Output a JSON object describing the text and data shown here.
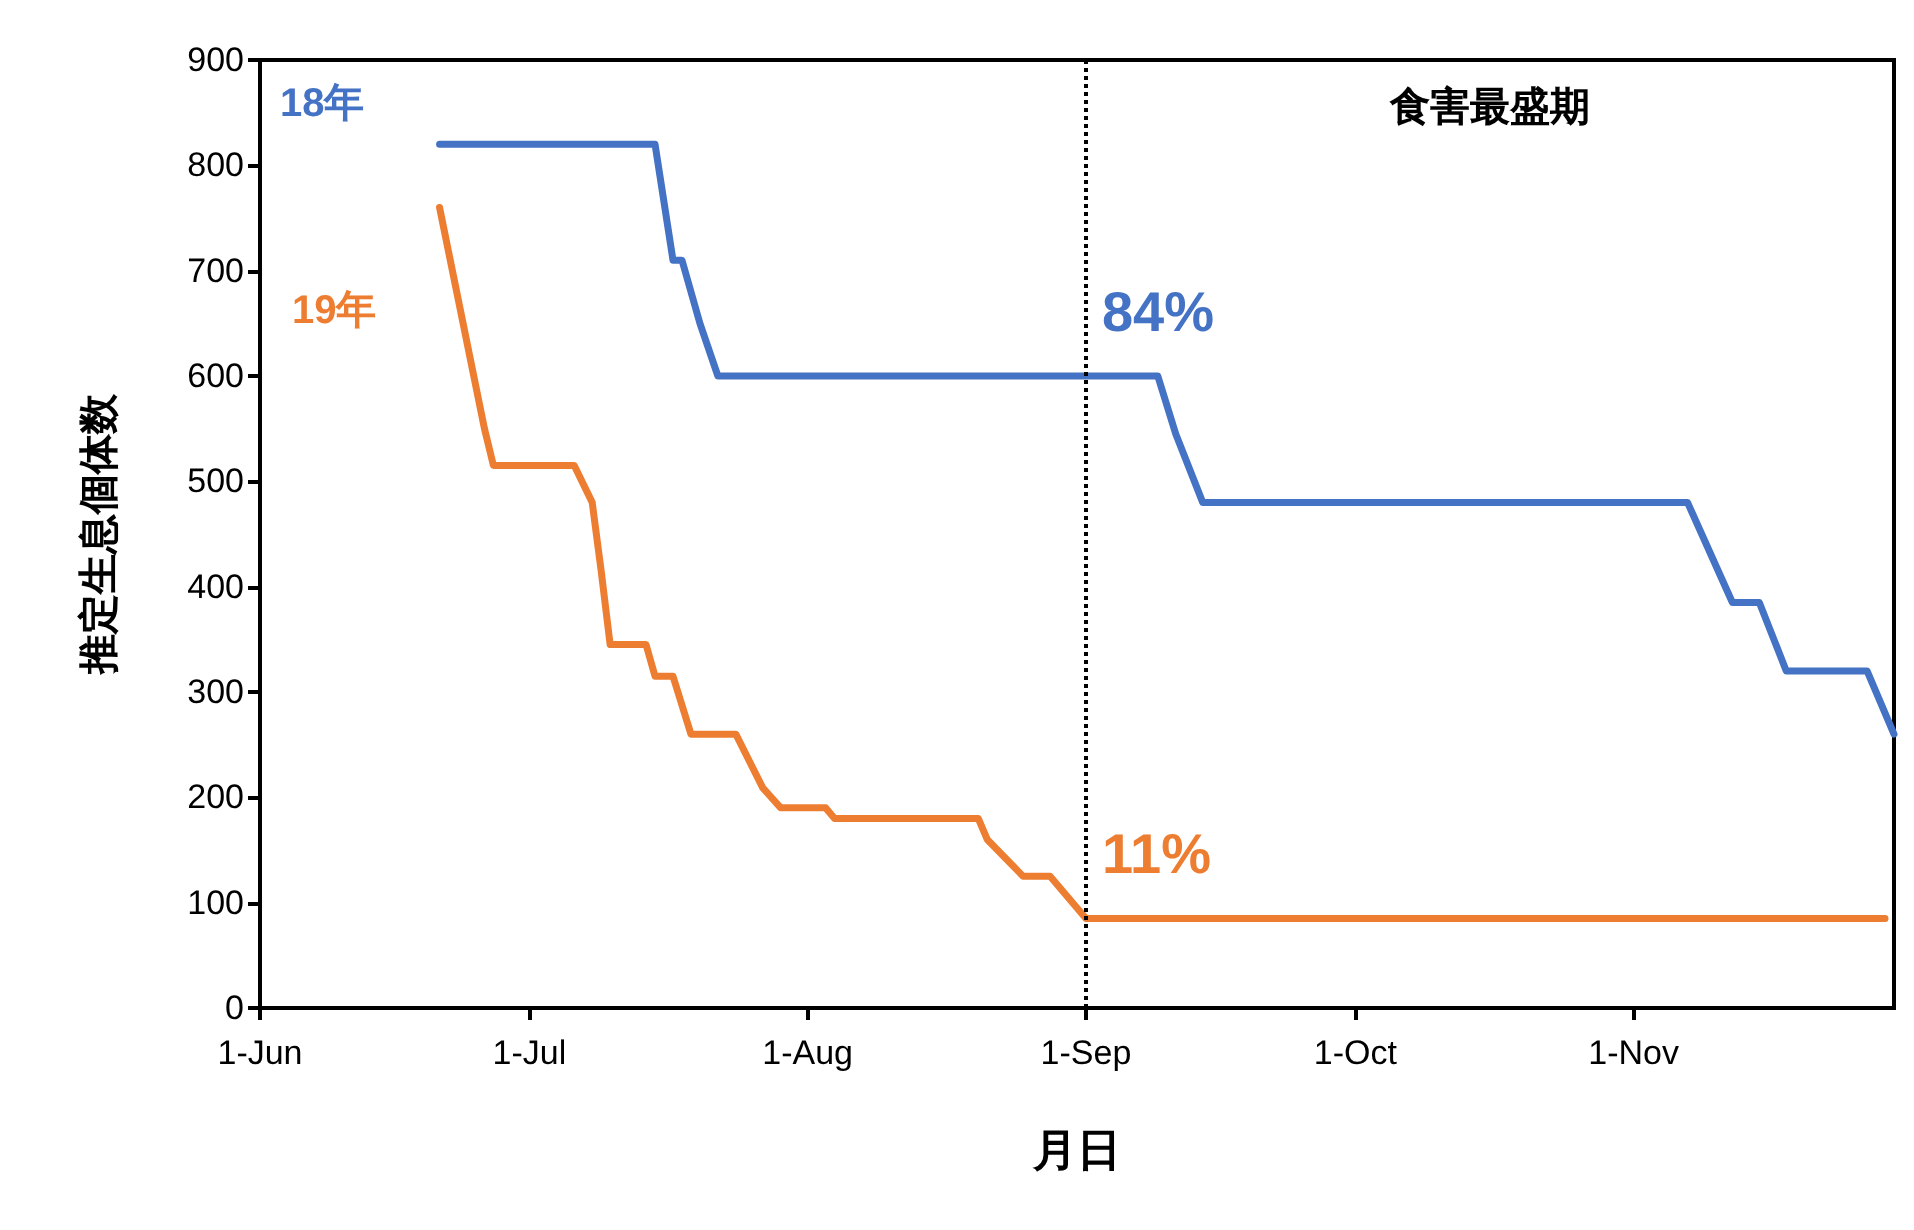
{
  "chart_data": {
    "type": "line",
    "xlabel": "月日",
    "ylabel": "推定生息個体数",
    "xlim": [
      "--06-01",
      "--11-30"
    ],
    "xticks": [
      {
        "value": "--06-01",
        "label": "1-Jun"
      },
      {
        "value": "--07-01",
        "label": "1-Jul"
      },
      {
        "value": "--08-01",
        "label": "1-Aug"
      },
      {
        "value": "--09-01",
        "label": "1-Sep"
      },
      {
        "value": "--10-01",
        "label": "1-Oct"
      },
      {
        "value": "--11-01",
        "label": "1-Nov"
      }
    ],
    "ylim": [
      0,
      900
    ],
    "yticks": [
      0,
      100,
      200,
      300,
      400,
      500,
      600,
      700,
      800,
      900
    ],
    "grid": false,
    "legend": false,
    "marker": "none",
    "line_style": "solid",
    "series": [
      {
        "name": "18年",
        "color": "#4472c4",
        "x": [
          "--06-21",
          "--07-15",
          "--07-17",
          "--07-18",
          "--07-20",
          "--07-22",
          "--09-09",
          "--09-11",
          "--09-14",
          "--11-07",
          "--11-12",
          "--11-15",
          "--11-18",
          "--11-27",
          "--11-30"
        ],
        "values": [
          820,
          820,
          710,
          710,
          650,
          600,
          600,
          545,
          480,
          480,
          385,
          385,
          320,
          320,
          260
        ]
      },
      {
        "name": "19年",
        "color": "#ed7d31",
        "x": [
          "--06-21",
          "--06-26",
          "--06-27",
          "--07-06",
          "--07-08",
          "--07-09",
          "--07-10",
          "--07-14",
          "--07-15",
          "--07-17",
          "--07-19",
          "--07-24",
          "--07-27",
          "--07-29",
          "--08-03",
          "--08-04",
          "--08-20",
          "--08-21",
          "--08-25",
          "--08-28",
          "--09-01",
          "--11-29"
        ],
        "values": [
          760,
          550,
          515,
          515,
          480,
          415,
          345,
          345,
          315,
          315,
          260,
          260,
          209,
          190,
          190,
          180,
          180,
          160,
          125,
          125,
          85,
          85
        ]
      }
    ],
    "ref_lines": [
      {
        "axis": "x",
        "value": "--09-01",
        "label": "食害最盛期",
        "color": "#000000",
        "line_style": "dotted"
      }
    ],
    "annotations": [
      "84%",
      "11%"
    ]
  }
}
